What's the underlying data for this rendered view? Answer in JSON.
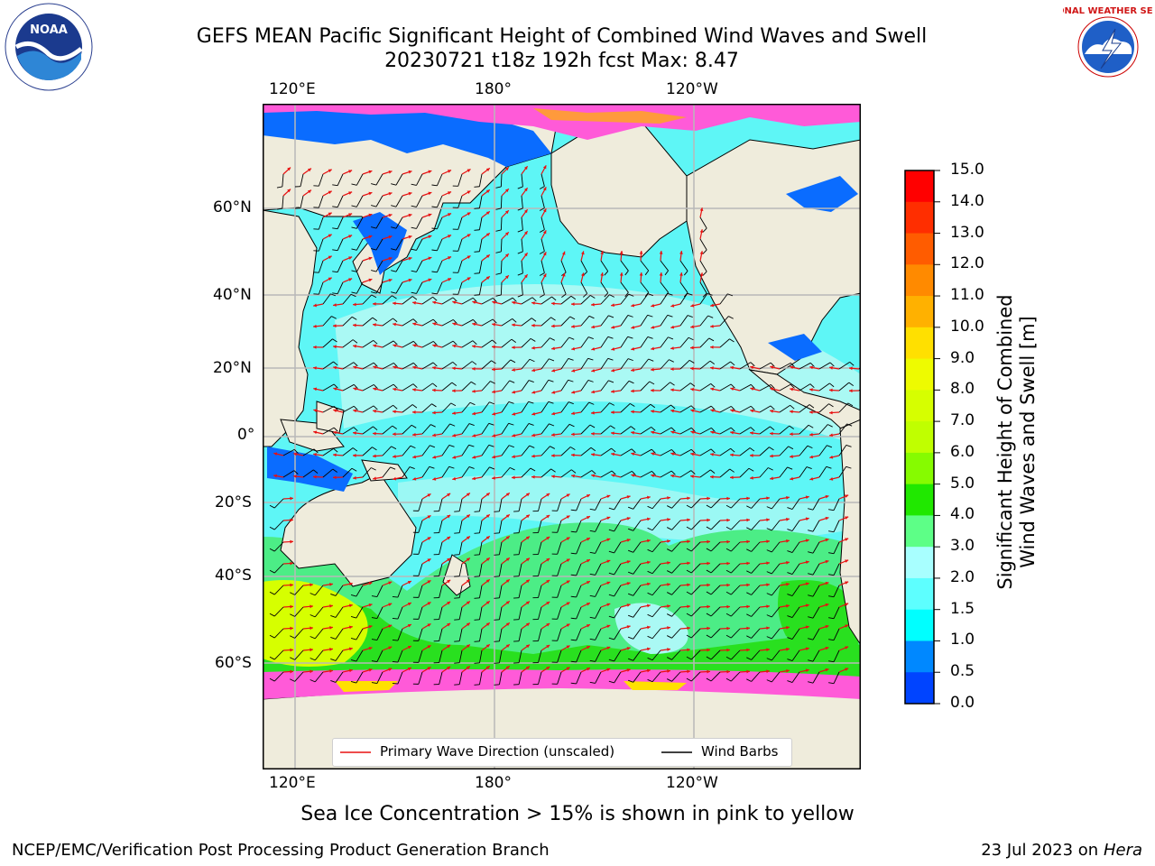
{
  "header": {
    "title_line1": "GEFS MEAN Pacific Significant Height of Combined Wind Waves and Swell",
    "title_line2": "20230721 t18z 192h fcst   Max: 8.47"
  },
  "logos": {
    "left": {
      "name": "NOAA",
      "ring_text": "NATIONAL OCEANIC AND ATMOSPHERIC ADMINISTRATION · U.S. DEPARTMENT OF COMMERCE"
    },
    "right": {
      "name": "NATIONAL WEATHER SERVICE"
    }
  },
  "map": {
    "lon_labels": [
      "120°E",
      "180°",
      "120°W"
    ],
    "lat_labels": [
      "60°N",
      "40°N",
      "20°N",
      "0°",
      "20°S",
      "40°S",
      "60°S"
    ],
    "colors": {
      "land": "#efecdc",
      "ice_free_ocean_default": "#63f3f3",
      "gridline": "#b8b8b8"
    }
  },
  "legend": {
    "primary_wave_label": "Primary Wave Direction (unscaled)",
    "wind_barbs_label": "Wind Barbs",
    "primary_wave_color": "#e81010",
    "wind_barbs_color": "#000000"
  },
  "colorbar": {
    "title_line1": "Significant Height of Combined",
    "title_line2": "Wind Waves and Swell [m]",
    "ticks": [
      "15.0",
      "14.0",
      "13.0",
      "12.0",
      "11.0",
      "10.0",
      "9.0",
      "8.0",
      "7.0",
      "6.0",
      "5.0",
      "4.0",
      "3.0",
      "2.0",
      "1.5",
      "1.0",
      "0.5",
      "0.0"
    ],
    "colors_top_to_bottom": [
      "#ff0000",
      "#ff2e00",
      "#ff5c00",
      "#ff8a00",
      "#ffb100",
      "#ffe000",
      "#eefb00",
      "#d6ff00",
      "#c0ff00",
      "#86fb00",
      "#20e800",
      "#5dff87",
      "#a8ffff",
      "#5dffff",
      "#00ffff",
      "#0088ff",
      "#0044ff",
      "#0000ff"
    ]
  },
  "footer": {
    "note": "Sea Ice Concentration > 15% is shown in pink to yellow",
    "left": "NCEP/EMC/Verification Post Processing Product Generation Branch",
    "date": "23 Jul 2023 on ",
    "machine": "Hera"
  }
}
